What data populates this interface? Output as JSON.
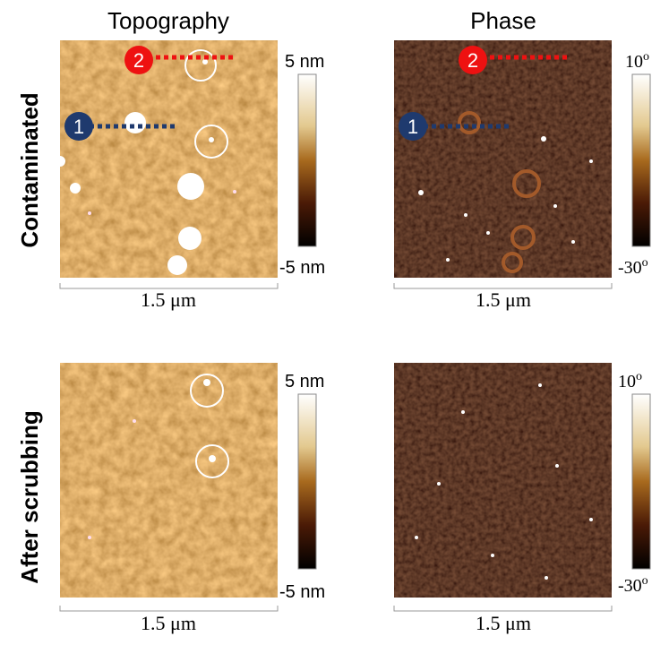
{
  "columns": [
    "Topography",
    "Phase"
  ],
  "rows": [
    {
      "label": "Contaminated",
      "panels": [
        {
          "colorbar": {
            "max": "5 nm",
            "min": "-5 nm"
          },
          "scale_bar": "1.5 μm",
          "markers": [
            "1",
            "2"
          ]
        },
        {
          "colorbar": {
            "max": "10",
            "max_sup": "o",
            "min": "-30",
            "min_sup": "o"
          },
          "scale_bar": "1.5 μm",
          "markers": [
            "1",
            "2"
          ]
        }
      ]
    },
    {
      "label": "After scrubbing",
      "panels": [
        {
          "colorbar": {
            "max": "5 nm",
            "min": "-5 nm"
          },
          "scale_bar": "1.5 μm"
        },
        {
          "colorbar": {
            "max": "10",
            "max_sup": "o",
            "min": "-30",
            "min_sup": "o"
          },
          "scale_bar": "1.5 μm"
        }
      ]
    }
  ]
}
